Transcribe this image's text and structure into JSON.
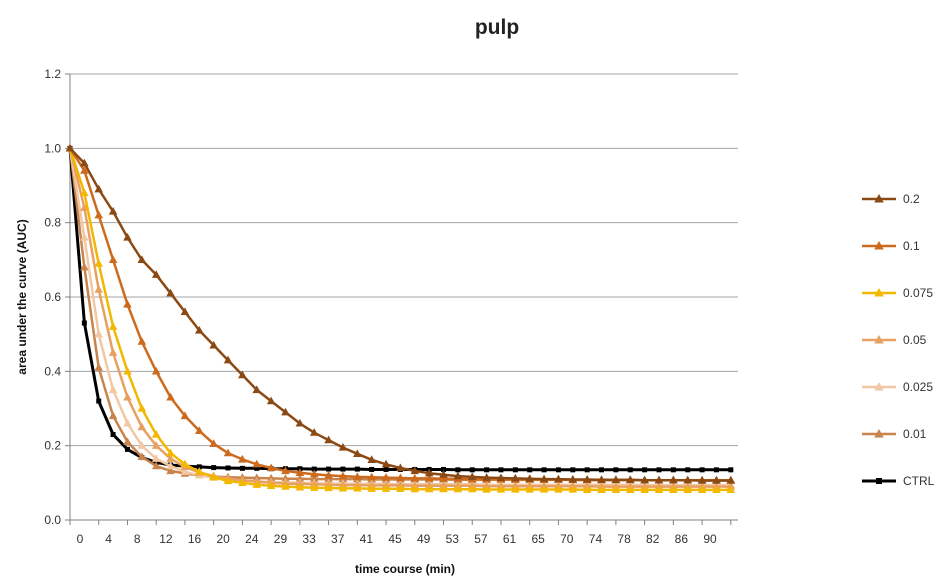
{
  "chart_data": {
    "type": "line",
    "title": "pulp",
    "xlabel": "time course (min)",
    "ylabel": "area under the curve (AUC)",
    "ylim": [
      0,
      1.2
    ],
    "yticks": [
      "0.0",
      "0.2",
      "0.4",
      "0.6",
      "0.8",
      "1.0",
      "1.2"
    ],
    "xlim": [
      0,
      93
    ],
    "xticks": [
      0,
      4,
      8,
      12,
      16,
      20,
      24,
      29,
      33,
      37,
      41,
      45,
      49,
      53,
      57,
      61,
      65,
      70,
      74,
      78,
      82,
      86,
      90
    ],
    "grid": "horizontal",
    "legend_position": "right",
    "x": [
      0,
      2,
      4,
      6,
      8,
      10,
      12,
      14,
      16,
      18,
      20,
      22,
      24,
      26,
      28,
      30,
      32,
      34,
      36,
      38,
      40,
      42,
      44,
      46,
      48,
      50,
      52,
      54,
      56,
      58,
      60,
      62,
      64,
      66,
      68,
      70,
      72,
      74,
      76,
      78,
      80,
      82,
      84,
      86,
      88,
      90,
      92
    ],
    "series": [
      {
        "name": "0.2",
        "color": "#8b4a14",
        "marker": "triangle",
        "values": [
          1.0,
          0.96,
          0.89,
          0.83,
          0.76,
          0.7,
          0.66,
          0.61,
          0.56,
          0.51,
          0.47,
          0.43,
          0.39,
          0.35,
          0.32,
          0.29,
          0.26,
          0.235,
          0.215,
          0.195,
          0.178,
          0.162,
          0.15,
          0.14,
          0.132,
          0.126,
          0.122,
          0.118,
          0.116,
          0.114,
          0.113,
          0.112,
          0.111,
          0.11,
          0.11,
          0.109,
          0.109,
          0.108,
          0.108,
          0.108,
          0.107,
          0.107,
          0.107,
          0.107,
          0.106,
          0.106,
          0.106
        ]
      },
      {
        "name": "0.1",
        "color": "#cc6a1e",
        "marker": "triangle",
        "values": [
          1.0,
          0.94,
          0.82,
          0.7,
          0.58,
          0.48,
          0.4,
          0.33,
          0.28,
          0.24,
          0.205,
          0.18,
          0.163,
          0.15,
          0.14,
          0.132,
          0.127,
          0.123,
          0.12,
          0.118,
          0.116,
          0.115,
          0.114,
          0.113,
          0.112,
          0.112,
          0.111,
          0.111,
          0.11,
          0.11,
          0.11,
          0.109,
          0.109,
          0.109,
          0.109,
          0.108,
          0.108,
          0.108,
          0.108,
          0.108,
          0.107,
          0.107,
          0.107,
          0.107,
          0.107,
          0.107,
          0.107
        ]
      },
      {
        "name": "0.075",
        "color": "#f2b800",
        "marker": "triangle",
        "values": [
          1.0,
          0.88,
          0.69,
          0.52,
          0.4,
          0.3,
          0.23,
          0.18,
          0.15,
          0.13,
          0.115,
          0.105,
          0.1,
          0.095,
          0.092,
          0.09,
          0.088,
          0.087,
          0.086,
          0.085,
          0.085,
          0.084,
          0.084,
          0.084,
          0.083,
          0.083,
          0.083,
          0.083,
          0.083,
          0.082,
          0.082,
          0.082,
          0.082,
          0.082,
          0.082,
          0.082,
          0.081,
          0.081,
          0.081,
          0.081,
          0.081,
          0.081,
          0.081,
          0.081,
          0.081,
          0.081,
          0.081
        ]
      },
      {
        "name": "0.05",
        "color": "#e8a060",
        "marker": "triangle",
        "values": [
          1.0,
          0.84,
          0.62,
          0.45,
          0.33,
          0.25,
          0.2,
          0.165,
          0.143,
          0.128,
          0.118,
          0.112,
          0.107,
          0.103,
          0.1,
          0.098,
          0.097,
          0.096,
          0.095,
          0.094,
          0.094,
          0.093,
          0.093,
          0.093,
          0.092,
          0.092,
          0.092,
          0.092,
          0.092,
          0.091,
          0.091,
          0.091,
          0.091,
          0.091,
          0.091,
          0.091,
          0.091,
          0.09,
          0.09,
          0.09,
          0.09,
          0.09,
          0.09,
          0.09,
          0.09,
          0.09,
          0.09
        ]
      },
      {
        "name": "0.025",
        "color": "#f2c8a4",
        "marker": "triangle",
        "values": [
          1.0,
          0.76,
          0.5,
          0.35,
          0.26,
          0.2,
          0.165,
          0.145,
          0.13,
          0.12,
          0.114,
          0.11,
          0.107,
          0.104,
          0.102,
          0.101,
          0.1,
          0.099,
          0.098,
          0.098,
          0.097,
          0.097,
          0.097,
          0.096,
          0.096,
          0.096,
          0.096,
          0.096,
          0.096,
          0.095,
          0.095,
          0.095,
          0.095,
          0.095,
          0.095,
          0.095,
          0.095,
          0.095,
          0.095,
          0.095,
          0.094,
          0.094,
          0.094,
          0.094,
          0.094,
          0.094,
          0.094
        ]
      },
      {
        "name": "0.01",
        "color": "#c8844a",
        "marker": "triangle",
        "values": [
          1.0,
          0.68,
          0.41,
          0.28,
          0.21,
          0.17,
          0.145,
          0.132,
          0.125,
          0.12,
          0.117,
          0.115,
          0.114,
          0.113,
          0.112,
          0.111,
          0.111,
          0.11,
          0.11,
          0.11,
          0.11,
          0.109,
          0.109,
          0.109,
          0.109,
          0.109,
          0.109,
          0.108,
          0.108,
          0.108,
          0.108,
          0.108,
          0.108,
          0.108,
          0.108,
          0.108,
          0.107,
          0.107,
          0.107,
          0.107,
          0.107,
          0.107,
          0.107,
          0.107,
          0.107,
          0.107,
          0.107
        ]
      },
      {
        "name": "CTRL",
        "color": "#000000",
        "marker": "square",
        "values": [
          1.0,
          0.53,
          0.32,
          0.23,
          0.19,
          0.168,
          0.155,
          0.148,
          0.145,
          0.143,
          0.141,
          0.14,
          0.139,
          0.139,
          0.138,
          0.138,
          0.138,
          0.137,
          0.137,
          0.137,
          0.137,
          0.136,
          0.136,
          0.136,
          0.136,
          0.136,
          0.136,
          0.135,
          0.135,
          0.135,
          0.135,
          0.135,
          0.135,
          0.135,
          0.135,
          0.135,
          0.135,
          0.135,
          0.135,
          0.135,
          0.135,
          0.135,
          0.135,
          0.135,
          0.135,
          0.135,
          0.135
        ]
      }
    ]
  }
}
